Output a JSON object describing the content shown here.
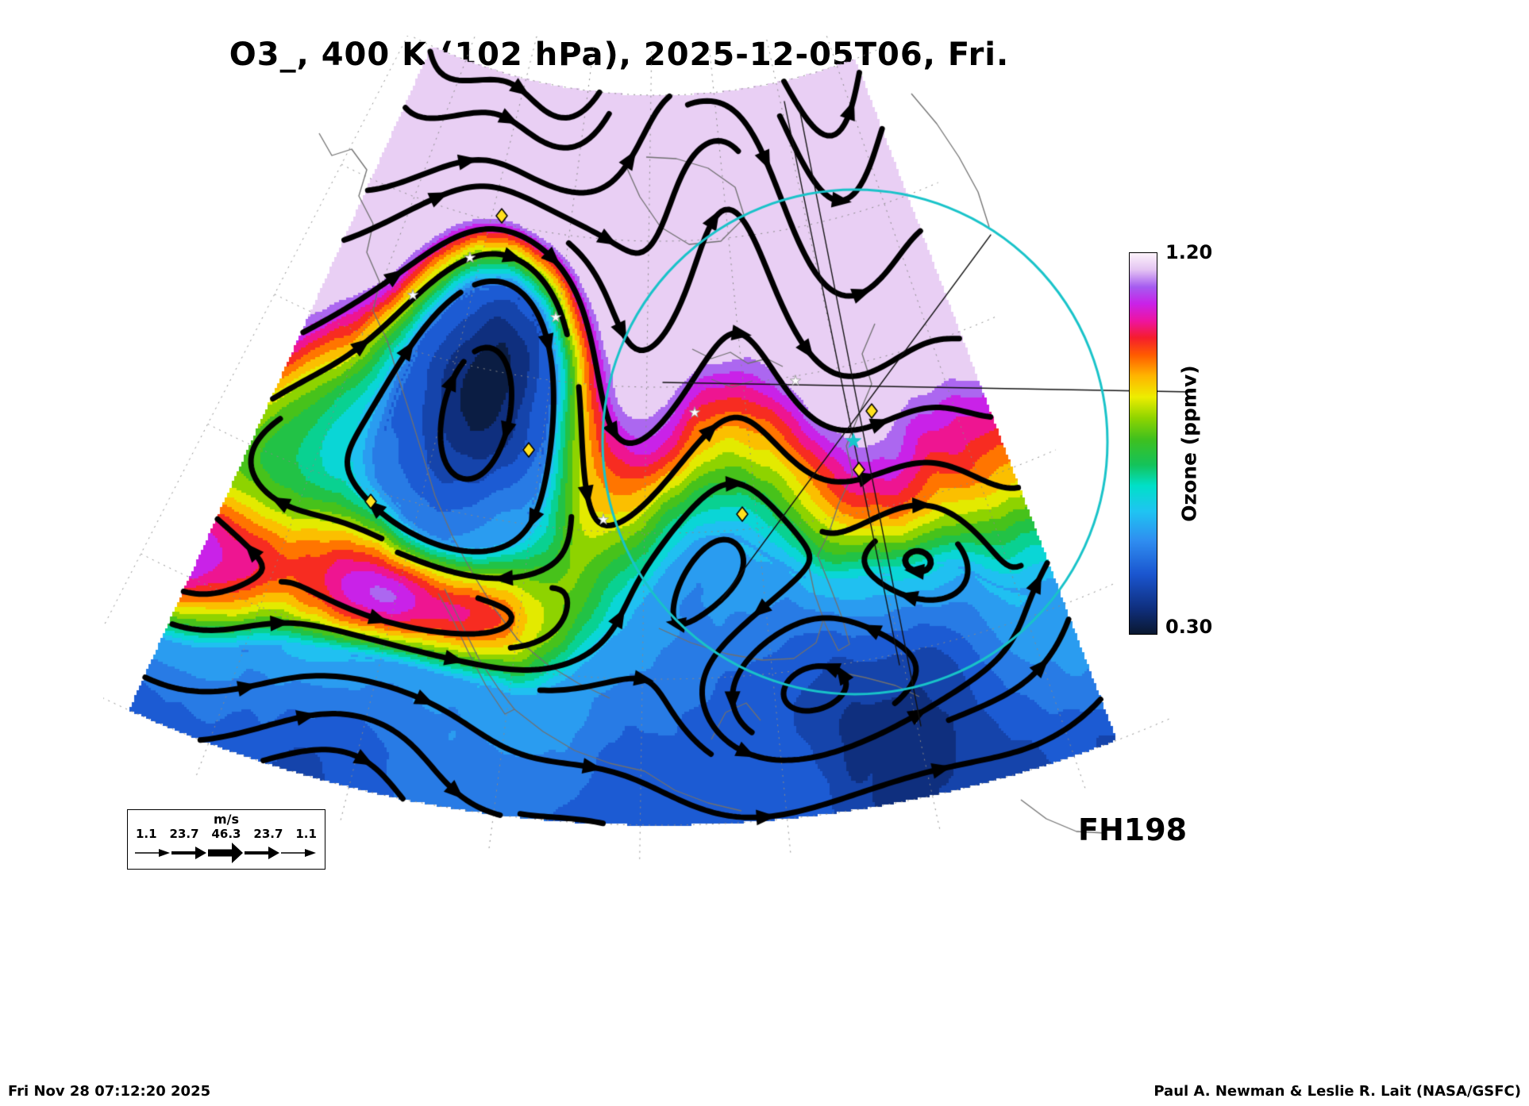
{
  "title": "O3_, 400 K (102 hPa), 2025-12-05T06, Fri.",
  "colorbar": {
    "top_label": "1.20",
    "bottom_label": "0.30",
    "axis_label": "Ozone (ppmv)",
    "stops": [
      {
        "v": 0.3,
        "color": "#0a1830"
      },
      {
        "v": 0.36,
        "color": "#0f2f7e"
      },
      {
        "v": 0.44,
        "color": "#1a55cf"
      },
      {
        "v": 0.52,
        "color": "#2f8df0"
      },
      {
        "v": 0.59,
        "color": "#1fc4f2"
      },
      {
        "v": 0.65,
        "color": "#00e0c8"
      },
      {
        "v": 0.7,
        "color": "#14c35a"
      },
      {
        "v": 0.76,
        "color": "#3fc01e"
      },
      {
        "v": 0.81,
        "color": "#8fd400"
      },
      {
        "v": 0.86,
        "color": "#eded00"
      },
      {
        "v": 0.91,
        "color": "#ffb400"
      },
      {
        "v": 0.96,
        "color": "#ff5a00"
      },
      {
        "v": 1.0,
        "color": "#f51d2d"
      },
      {
        "v": 1.04,
        "color": "#ee14a0"
      },
      {
        "v": 1.08,
        "color": "#c922e8"
      },
      {
        "v": 1.12,
        "color": "#a55bf0"
      },
      {
        "v": 1.16,
        "color": "#e3c3f2"
      },
      {
        "v": 1.2,
        "color": "#fdf3fb"
      }
    ]
  },
  "forecast_hour_label": "FH198",
  "wind_legend": {
    "units_label": "m/s",
    "tick_labels": [
      "1.1",
      "23.7",
      "46.3",
      "23.7",
      "1.1"
    ]
  },
  "footer_left": "Fri Nov 28 07:12:20 2025",
  "footer_right": "Paul A. Newman & Leslie R. Lait (NASA/GSFC)",
  "chart_data": {
    "type": "heatmap",
    "title": "O3_, 400 K (102 hPa), 2025-12-05T06, Fri.",
    "variable": "Ozone",
    "units": "ppmv",
    "level": "400 K (102 hPa)",
    "valid_time": "2025-12-05T06, Fri.",
    "forecast_hour_label": "FH198",
    "colorbar_range": [
      0.3,
      1.2
    ],
    "colorbar_tick_labels": [
      "0.30",
      "1.20"
    ],
    "colorbar_position": "right-vertical",
    "grid": "dotted latitude-longitude graticule",
    "projection": "polar stereographic sector over North America",
    "overlays": [
      "black wind streamlines with arrowheads",
      "gray coastlines",
      "teal range ring with straight crossing lines and teal star at center",
      "yellow diamond site markers",
      "small white star markers"
    ],
    "wind_scale_ms": [
      1.1,
      23.7,
      46.3,
      23.7,
      1.1
    ],
    "field_summary": [
      {
        "region": "northern (poleward) sector, pale pink/white",
        "approx_ozone_ppmv": 1.15
      },
      {
        "region": "midlatitude filament band (yellow/orange/red/magenta)",
        "approx_ozone_ppmv": 0.95
      },
      {
        "region": "western trough pool (dark blue)",
        "approx_ozone_ppmv": 0.4
      },
      {
        "region": "southern subtropical sector (cyan/green) with cyclonic swirl southeast",
        "approx_ozone_ppmv": 0.55
      }
    ]
  }
}
